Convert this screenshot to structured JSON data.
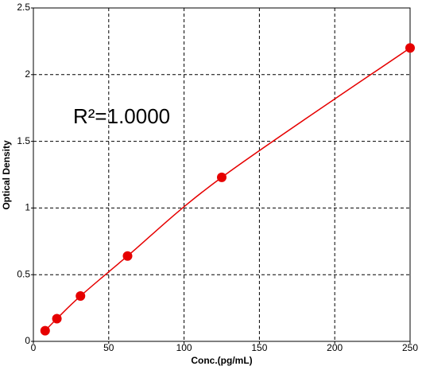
{
  "chart_data": {
    "type": "scatter",
    "x_label": "Conc.(pg/mL)",
    "y_label": "Optical Density",
    "annotation": "R²=1.0000",
    "x": [
      7.8,
      15.6,
      31.25,
      62.5,
      125,
      250
    ],
    "values": [
      0.08,
      0.17,
      0.34,
      0.64,
      1.23,
      2.2
    ],
    "color": "#e60000",
    "fit_line": true,
    "xlim": [
      0,
      250
    ],
    "xticks": [
      0,
      50,
      100,
      150,
      200,
      250
    ],
    "ylim": [
      0,
      2.5
    ],
    "yticks": [
      0,
      0.5,
      1,
      1.5,
      2,
      2.5
    ],
    "grid": true
  }
}
